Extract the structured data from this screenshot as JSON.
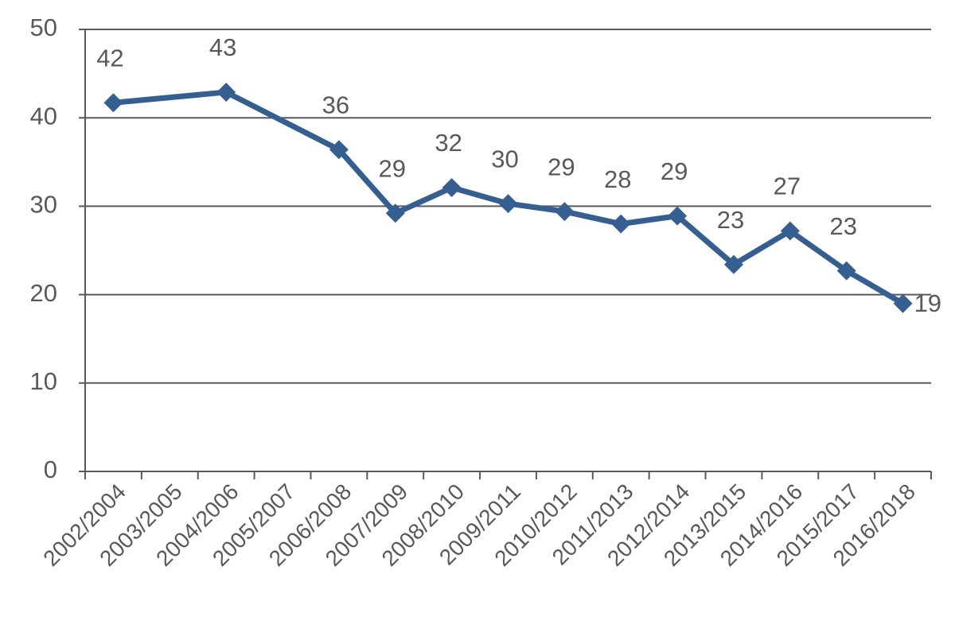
{
  "chart_data": {
    "type": "line",
    "categories": [
      "2002/2004",
      "2003/2005",
      "2004/2006",
      "2005/2007",
      "2006/2008",
      "2007/2009",
      "2008/2010",
      "2009/2011",
      "2010/2012",
      "2011/2013",
      "2012/2014",
      "2013/2015",
      "2014/2016",
      "2015/2017",
      "2016/2018"
    ],
    "series": [
      {
        "color": "#365f91",
        "values": [
          41.7,
          null,
          42.9,
          null,
          36.4,
          29.2,
          32.1,
          30.3,
          29.4,
          28.0,
          28.9,
          23.4,
          27.2,
          22.7,
          19.0
        ],
        "value_labels": [
          "42",
          null,
          "43",
          null,
          "36",
          "29",
          "32",
          "30",
          "29",
          "28",
          "29",
          "23",
          "27",
          "23",
          "19"
        ]
      }
    ],
    "connect_gaps": true,
    "ylim": [
      0,
      50
    ],
    "yticks": [
      0,
      10,
      20,
      30,
      40,
      50
    ],
    "grid": true
  }
}
